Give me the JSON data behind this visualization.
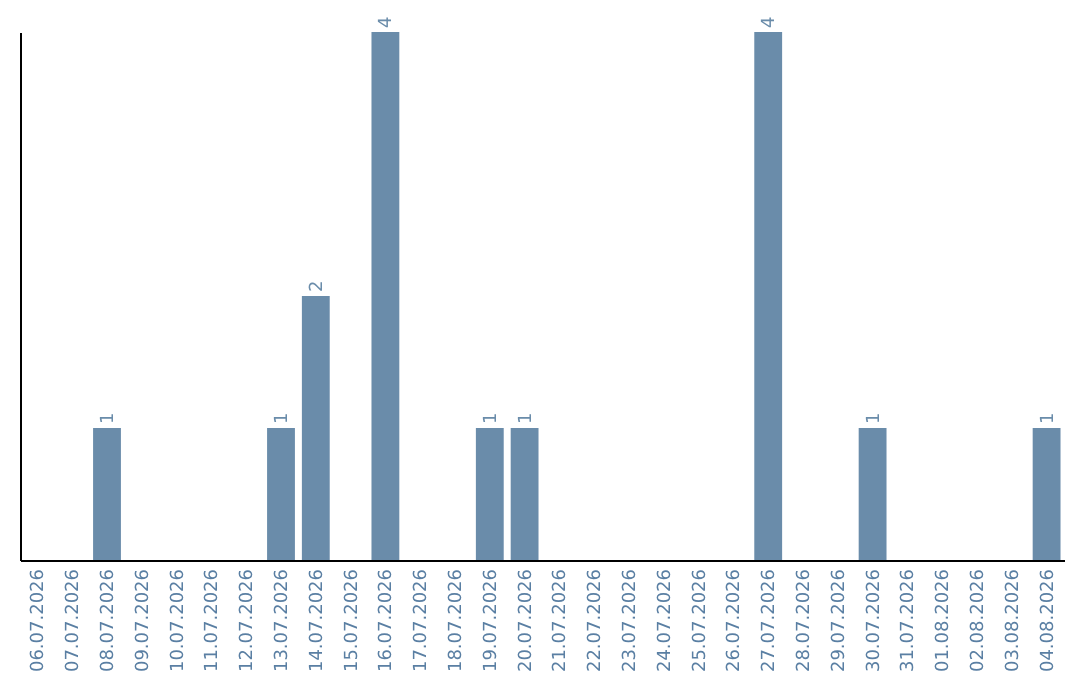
{
  "chart_data": {
    "type": "bar",
    "categories": [
      "06.07.2026",
      "07.07.2026",
      "08.07.2026",
      "09.07.2026",
      "10.07.2026",
      "11.07.2026",
      "12.07.2026",
      "13.07.2026",
      "14.07.2026",
      "15.07.2026",
      "16.07.2026",
      "17.07.2026",
      "18.07.2026",
      "19.07.2026",
      "20.07.2026",
      "21.07.2026",
      "22.07.2026",
      "23.07.2026",
      "24.07.2026",
      "25.07.2026",
      "26.07.2026",
      "27.07.2026",
      "28.07.2026",
      "29.07.2026",
      "30.07.2026",
      "31.07.2026",
      "01.08.2026",
      "02.08.2026",
      "03.08.2026",
      "04.08.2026"
    ],
    "values": [
      null,
      null,
      1,
      null,
      null,
      null,
      null,
      1,
      2,
      null,
      4,
      null,
      null,
      1,
      1,
      null,
      null,
      null,
      null,
      null,
      null,
      4,
      null,
      null,
      1,
      null,
      null,
      null,
      null,
      1
    ],
    "color": "#6a8caa",
    "ylim": [
      0,
      4
    ],
    "data_labels": true,
    "tick_labels": "x"
  }
}
